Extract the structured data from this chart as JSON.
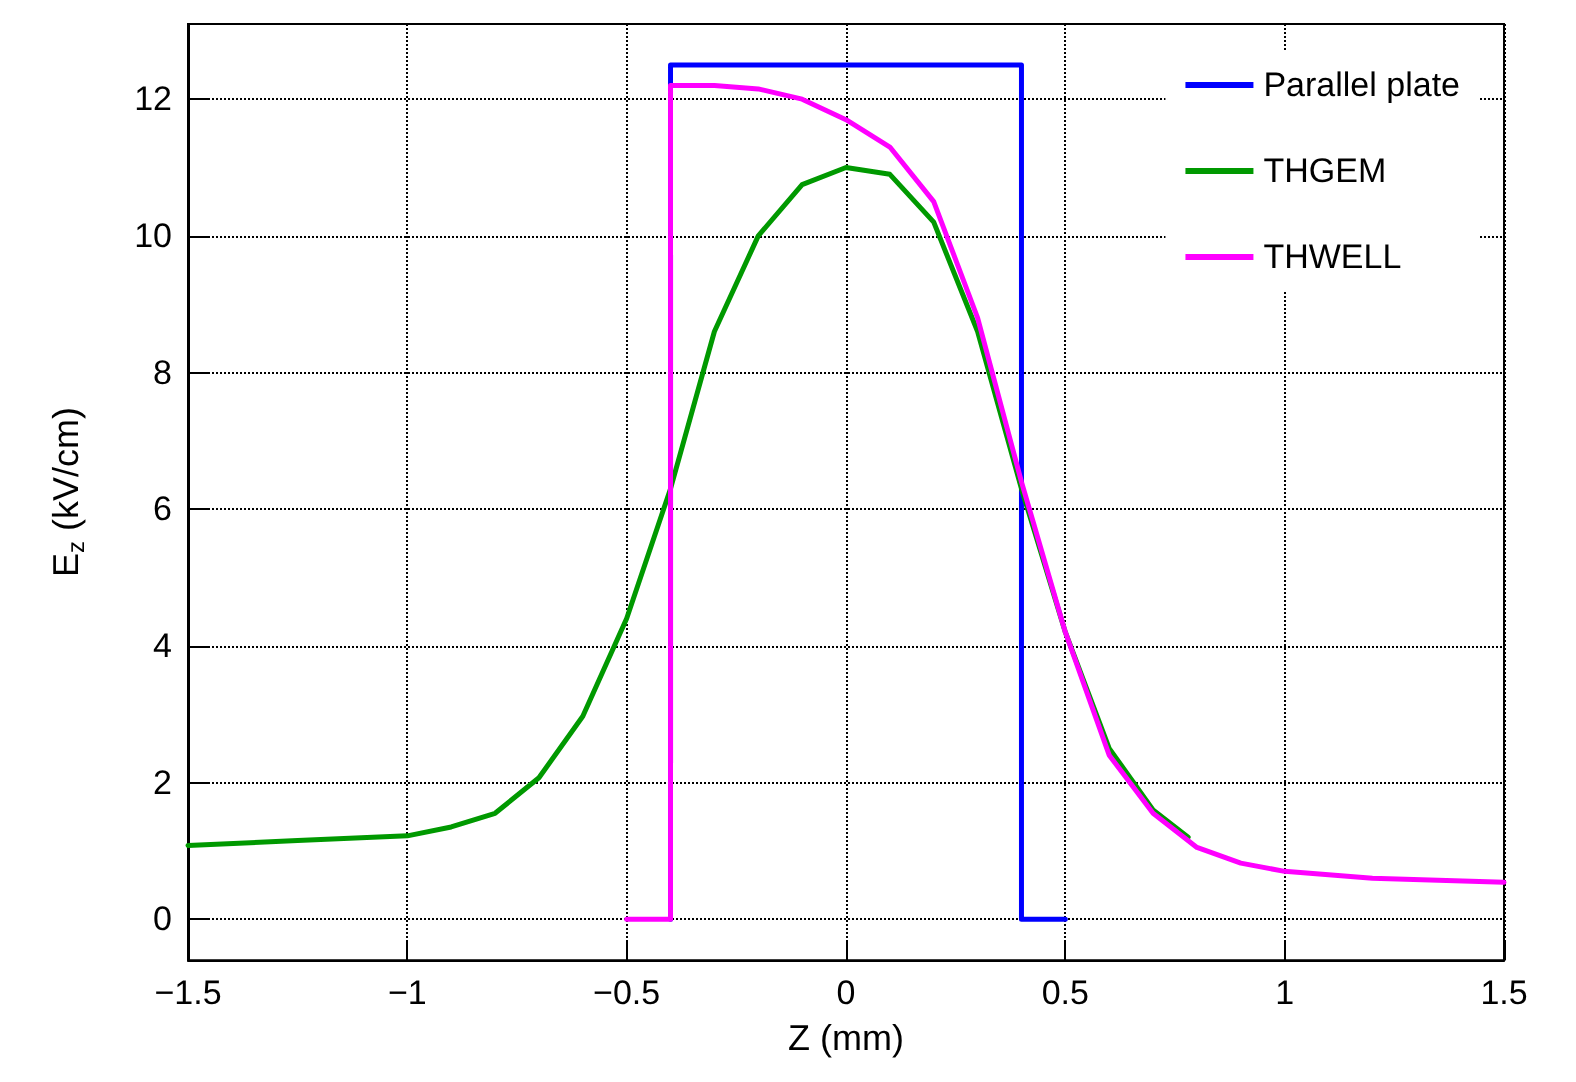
{
  "chart_data": {
    "type": "line",
    "xlabel": "Z (mm)",
    "ylabel": "E$_{z}$ (kV/cm)",
    "xlim": [
      -1.5,
      1.5
    ],
    "xticks": [
      {
        "value": -1.5,
        "label": "−1.5"
      },
      {
        "value": -1,
        "label": "−1"
      },
      {
        "value": -0.5,
        "label": "−0.5"
      },
      0,
      0.5,
      1,
      1.5
    ],
    "ylim": [
      -0.6,
      13.1
    ],
    "yticks": [
      0,
      2,
      4,
      6,
      8,
      10,
      12
    ],
    "grid": true,
    "legend": "top right",
    "marker": "none",
    "line_style": "solid",
    "series": [
      {
        "name": "Parallel plate",
        "color": "#0000ff",
        "x": [
          -0.4,
          -0.4,
          0.4,
          0.4,
          0.5
        ],
        "values": [
          0,
          12.5,
          12.5,
          0,
          0
        ]
      },
      {
        "name": "THGEM",
        "color": "#009900",
        "x": [
          -1.5,
          -1.25,
          -1.0,
          -0.9,
          -0.8,
          -0.7,
          -0.6,
          -0.5,
          -0.4,
          -0.3,
          -0.2,
          -0.1,
          0,
          0.1,
          0.2,
          0.3,
          0.4,
          0.5,
          0.6,
          0.7,
          0.78
        ],
        "values": [
          1.08,
          1.15,
          1.22,
          1.35,
          1.55,
          2.07,
          2.97,
          4.4,
          6.3,
          8.6,
          10.0,
          10.75,
          11.0,
          10.9,
          10.2,
          8.6,
          6.3,
          4.2,
          2.5,
          1.6,
          1.2
        ]
      },
      {
        "name": "THWELL",
        "color": "#ff00ff",
        "x": [
          -0.5,
          -0.4,
          -0.4,
          -0.3,
          -0.2,
          -0.1,
          0,
          0.1,
          0.2,
          0.3,
          0.4,
          0.5,
          0.6,
          0.7,
          0.8,
          0.9,
          1.0,
          1.2,
          1.5
        ],
        "values": [
          0,
          0,
          12.2,
          12.2,
          12.15,
          12.0,
          11.7,
          11.3,
          10.5,
          8.8,
          6.4,
          4.2,
          2.4,
          1.55,
          1.05,
          0.82,
          0.7,
          0.6,
          0.54
        ]
      }
    ]
  }
}
